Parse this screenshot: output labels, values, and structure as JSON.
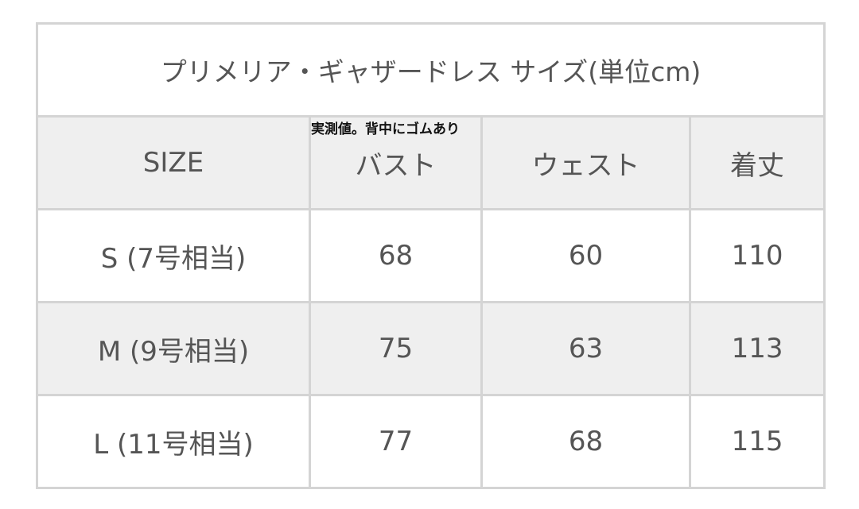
{
  "title": "プリメリア・ギャザードレス サイズ(単位cm)",
  "headers": [
    "SIZE",
    "バスト",
    "ウェスト",
    "着丈"
  ],
  "note": "実測値。背中にゴムあり",
  "rows": [
    [
      "S (7号相当)",
      "68",
      "60",
      "110"
    ],
    [
      "M (9号相当)",
      "75",
      "63",
      "113"
    ],
    [
      "L (11号相当)",
      "77",
      "68",
      "115"
    ]
  ]
}
